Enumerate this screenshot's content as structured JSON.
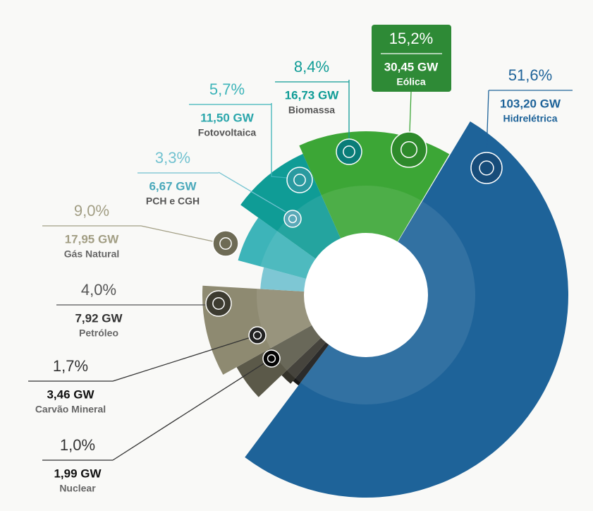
{
  "chart_data": {
    "type": "pie",
    "categories": [
      "Hidrelétrica",
      "Nuclear",
      "Carvão Mineral",
      "Petróleo",
      "Gás Natural",
      "PCH e CGH",
      "Fotovoltaica",
      "Biomassa",
      "Eólica"
    ],
    "values": [
      51.6,
      1.0,
      1.7,
      4.0,
      9.0,
      3.3,
      5.7,
      8.4,
      15.2
    ],
    "value_labels": [
      "51,6%",
      "1,0%",
      "1,7%",
      "4,0%",
      "9,0%",
      "3,3%",
      "5,7%",
      "8,4%",
      "15,2%"
    ],
    "capacity": [
      103.2,
      1.99,
      3.46,
      7.92,
      17.95,
      6.67,
      11.5,
      16.73,
      30.45
    ],
    "capacity_labels": [
      "103,20 GW",
      "1,99 GW",
      "3,46 GW",
      "7,92 GW",
      "17,95 GW",
      "6,67 GW",
      "11,50 GW",
      "16,73 GW",
      "30,45 GW"
    ],
    "colors": [
      "#1e6399",
      "#161616",
      "#34322a",
      "#5b5949",
      "#8e8a71",
      "#72c2d0",
      "#3db4b9",
      "#0f9c96",
      "#3ca636"
    ]
  }
}
